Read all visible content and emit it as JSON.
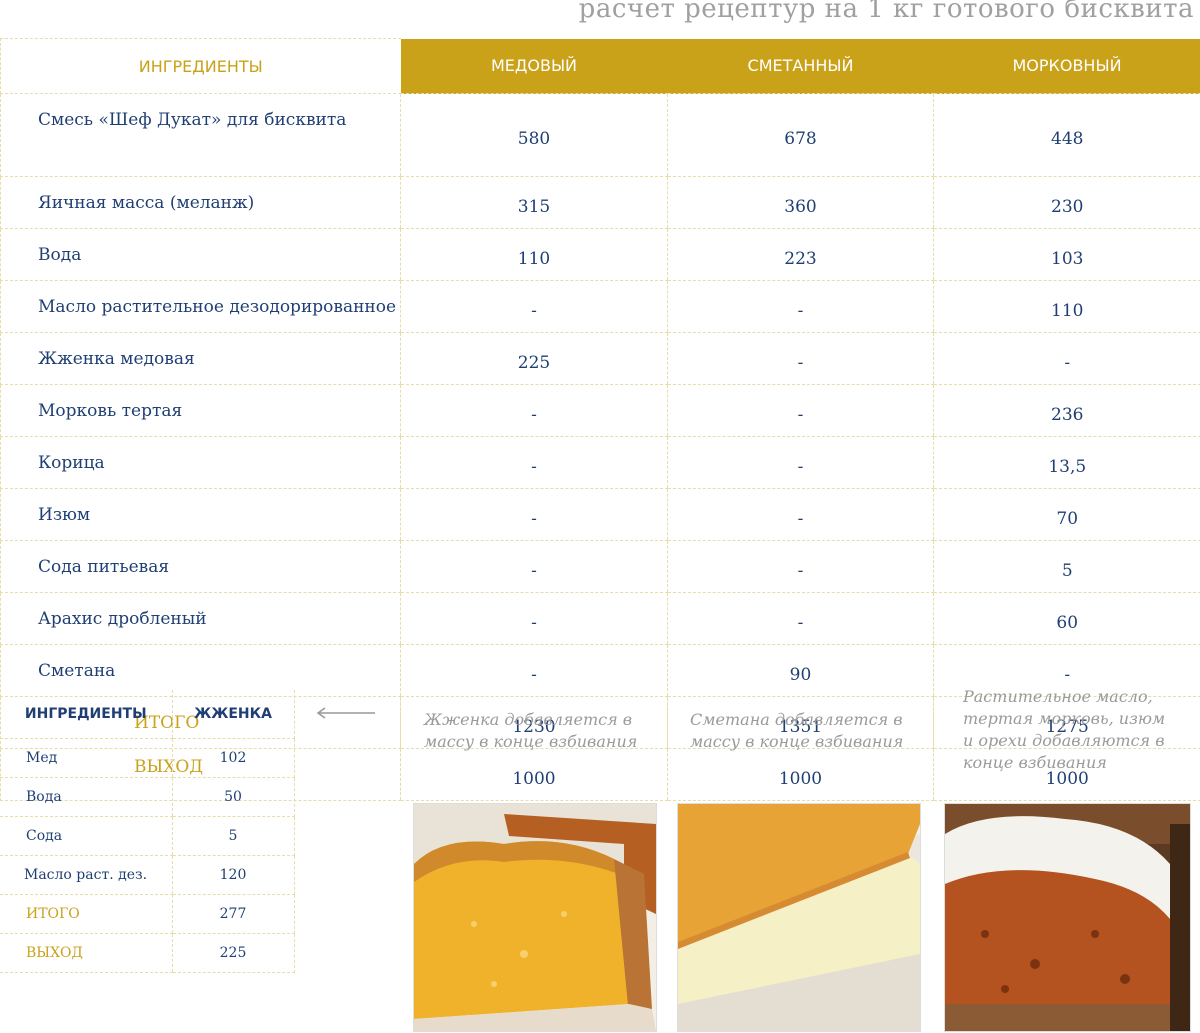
{
  "subtitle": "расчет рецептур на 1 кг готового бисквита",
  "main_table": {
    "header": {
      "ingredients": "ИНГРЕДИЕНТЫ",
      "col1": "МЕДОВЫЙ",
      "col2": "СМЕТАННЫЙ",
      "col3": "МОРКОВНЫЙ"
    },
    "rows": [
      {
        "name": "Смесь «Шеф Дукат» для бисквита",
        "v1": "580",
        "v2": "678",
        "v3": "448"
      },
      {
        "name": "Яичная масса (меланж)",
        "v1": "315",
        "v2": "360",
        "v3": "230"
      },
      {
        "name": "Вода",
        "v1": "110",
        "v2": "223",
        "v3": "103"
      },
      {
        "name": "Масло растительное дезодорированное",
        "v1": "-",
        "v2": "-",
        "v3": "110"
      },
      {
        "name": "Жженка медовая",
        "v1": "225",
        "v2": "-",
        "v3": "-"
      },
      {
        "name": "Морковь тертая",
        "v1": "-",
        "v2": "-",
        "v3": "236"
      },
      {
        "name": "Корица",
        "v1": "-",
        "v2": "-",
        "v3": "13,5"
      },
      {
        "name": "Изюм",
        "v1": "-",
        "v2": "-",
        "v3": "70"
      },
      {
        "name": "Сода питьевая",
        "v1": "-",
        "v2": "-",
        "v3": "5"
      },
      {
        "name": "Арахис дробленый",
        "v1": "-",
        "v2": "-",
        "v3": "60"
      },
      {
        "name": "Сметана",
        "v1": "-",
        "v2": "90",
        "v3": "-"
      }
    ],
    "total": {
      "name": "ИТОГО",
      "v1": "1230",
      "v2": "1351",
      "v3": "1275"
    },
    "output": {
      "name": "ВЫХОД",
      "v1": "1000",
      "v2": "1000",
      "v3": "1000"
    }
  },
  "small_table": {
    "header": {
      "ingredients": "ИНГРЕДИЕНТЫ",
      "col": "ЖЖЕНКА"
    },
    "rows": [
      {
        "name": "Мед",
        "v": "102"
      },
      {
        "name": "Вода",
        "v": "50"
      },
      {
        "name": "Сода",
        "v": "5"
      },
      {
        "name": "Масло раст. дез.",
        "v": "120"
      }
    ],
    "total": {
      "name": "ИТОГО",
      "v": "277"
    },
    "output": {
      "name": "ВЫХОД",
      "v": "225"
    }
  },
  "notes": {
    "honey": "Жженка добавляется в массу в конце взбивания",
    "sour_cream": "Сметана добавляется в массу в конце взбивания",
    "carrot": "Растительное масло, тертая морковь, изюм и орехи добавляются в конце взбивания"
  },
  "colors": {
    "accent": "#c9a21a",
    "text": "#1f3f73",
    "note": "#9a9a9a"
  }
}
